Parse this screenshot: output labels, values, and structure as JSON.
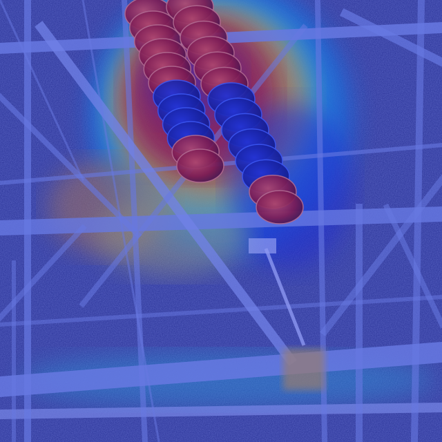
{
  "image": {
    "subject": "insulator-string-on-lattice-tower",
    "overlay": "heatmap",
    "colors": {
      "background": "#2a3170",
      "sky": "#4a5a9a",
      "steel": "#8fa2e8",
      "steel_shadow": "#2b3a8a",
      "insulator": "#3a1a1a",
      "heat_hot": "#d81e10",
      "heat_warm": "#f39c12",
      "heat_mid": "#e8e44a",
      "heat_cool": "#34d8e0",
      "heat_cold": "#1c2bd6"
    }
  }
}
